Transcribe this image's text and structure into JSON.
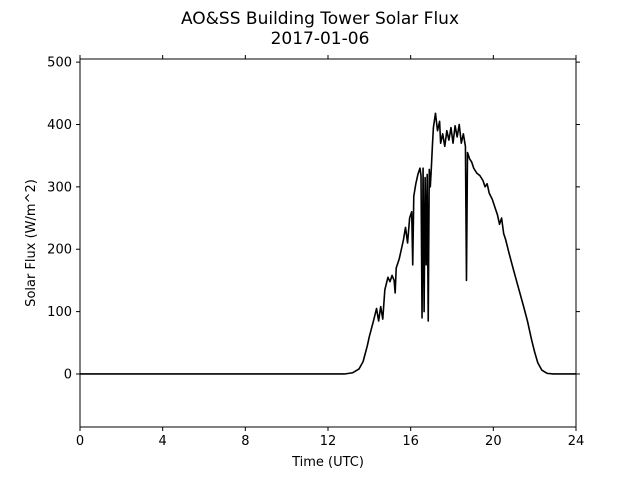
{
  "chart_data": {
    "type": "line",
    "title": "AO&SS Building Tower Solar Flux",
    "subtitle": "2017-01-06",
    "xlabel": "Time (UTC)",
    "ylabel": "Solar Flux (W/m^2)",
    "xlim": [
      0,
      24
    ],
    "ylim": [
      -85,
      505
    ],
    "xticks": [
      0,
      4,
      8,
      12,
      16,
      20,
      24
    ],
    "yticks": [
      0,
      100,
      200,
      300,
      400,
      500
    ],
    "grid": false,
    "series": [
      {
        "color": "#000000",
        "points": [
          [
            0,
            0
          ],
          [
            12.8,
            0
          ],
          [
            13.2,
            2
          ],
          [
            13.5,
            8
          ],
          [
            13.7,
            20
          ],
          [
            13.9,
            45
          ],
          [
            14.0,
            60
          ],
          [
            14.2,
            85
          ],
          [
            14.35,
            105
          ],
          [
            14.45,
            85
          ],
          [
            14.55,
            108
          ],
          [
            14.65,
            88
          ],
          [
            14.75,
            135
          ],
          [
            14.9,
            155
          ],
          [
            15.0,
            148
          ],
          [
            15.1,
            158
          ],
          [
            15.2,
            150
          ],
          [
            15.25,
            130
          ],
          [
            15.3,
            170
          ],
          [
            15.45,
            185
          ],
          [
            15.55,
            200
          ],
          [
            15.65,
            215
          ],
          [
            15.75,
            235
          ],
          [
            15.85,
            210
          ],
          [
            15.95,
            250
          ],
          [
            16.05,
            260
          ],
          [
            16.1,
            175
          ],
          [
            16.15,
            285
          ],
          [
            16.25,
            305
          ],
          [
            16.35,
            320
          ],
          [
            16.45,
            330
          ],
          [
            16.5,
            318
          ],
          [
            16.55,
            90
          ],
          [
            16.6,
            330
          ],
          [
            16.65,
            100
          ],
          [
            16.7,
            315
          ],
          [
            16.75,
            175
          ],
          [
            16.8,
            320
          ],
          [
            16.85,
            85
          ],
          [
            16.9,
            328
          ],
          [
            16.95,
            300
          ],
          [
            17.0,
            330
          ],
          [
            17.05,
            365
          ],
          [
            17.1,
            395
          ],
          [
            17.2,
            418
          ],
          [
            17.3,
            390
          ],
          [
            17.4,
            405
          ],
          [
            17.45,
            370
          ],
          [
            17.55,
            385
          ],
          [
            17.65,
            365
          ],
          [
            17.75,
            390
          ],
          [
            17.85,
            375
          ],
          [
            17.95,
            395
          ],
          [
            18.05,
            370
          ],
          [
            18.15,
            398
          ],
          [
            18.25,
            380
          ],
          [
            18.35,
            400
          ],
          [
            18.45,
            370
          ],
          [
            18.55,
            385
          ],
          [
            18.65,
            365
          ],
          [
            18.7,
            150
          ],
          [
            18.75,
            355
          ],
          [
            18.85,
            345
          ],
          [
            18.95,
            340
          ],
          [
            19.05,
            330
          ],
          [
            19.2,
            322
          ],
          [
            19.35,
            318
          ],
          [
            19.5,
            310
          ],
          [
            19.6,
            300
          ],
          [
            19.7,
            305
          ],
          [
            19.8,
            290
          ],
          [
            19.95,
            280
          ],
          [
            20.1,
            265
          ],
          [
            20.2,
            255
          ],
          [
            20.3,
            240
          ],
          [
            20.4,
            250
          ],
          [
            20.5,
            225
          ],
          [
            20.6,
            215
          ],
          [
            20.75,
            195
          ],
          [
            20.95,
            170
          ],
          [
            21.2,
            140
          ],
          [
            21.45,
            110
          ],
          [
            21.65,
            85
          ],
          [
            21.85,
            55
          ],
          [
            22.0,
            35
          ],
          [
            22.15,
            18
          ],
          [
            22.35,
            6
          ],
          [
            22.6,
            1
          ],
          [
            22.9,
            0
          ],
          [
            24,
            0
          ]
        ]
      }
    ]
  }
}
